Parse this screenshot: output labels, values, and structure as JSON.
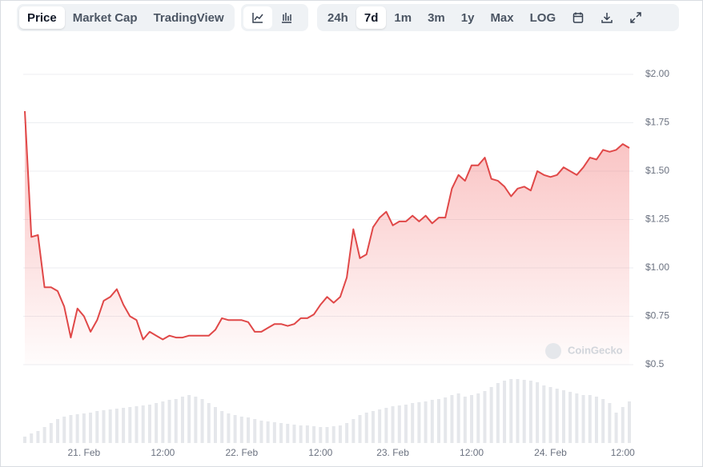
{
  "toolbar": {
    "views": [
      "Price",
      "Market Cap",
      "TradingView"
    ],
    "ranges": [
      "24h",
      "7d",
      "1m",
      "3m",
      "1y",
      "Max",
      "LOG"
    ]
  },
  "watermark": "CoinGecko",
  "chart_data": {
    "type": "area",
    "categories": [
      null,
      null,
      null,
      null,
      null,
      null,
      null,
      null,
      null,
      "21. Feb",
      null,
      null,
      null,
      null,
      null,
      null,
      null,
      null,
      null,
      null,
      null,
      "12:00",
      null,
      null,
      null,
      null,
      null,
      null,
      null,
      null,
      null,
      null,
      null,
      "22. Feb",
      null,
      null,
      null,
      null,
      null,
      null,
      null,
      null,
      null,
      null,
      null,
      "12:00",
      null,
      null,
      null,
      null,
      null,
      null,
      null,
      null,
      null,
      null,
      "23. Feb",
      null,
      null,
      null,
      null,
      null,
      null,
      null,
      null,
      null,
      null,
      null,
      "12:00",
      null,
      null,
      null,
      null,
      null,
      null,
      null,
      null,
      null,
      null,
      null,
      "24. Feb",
      null,
      null,
      null,
      null,
      null,
      null,
      null,
      null,
      null,
      null,
      "12:00",
      null
    ],
    "series": [
      {
        "name": "Price",
        "color": "#e04848",
        "values": [
          1.81,
          1.16,
          1.17,
          0.9,
          0.9,
          0.88,
          0.8,
          0.64,
          0.79,
          0.75,
          0.67,
          0.73,
          0.83,
          0.85,
          0.89,
          0.81,
          0.75,
          0.73,
          0.63,
          0.67,
          0.65,
          0.63,
          0.65,
          0.64,
          0.64,
          0.65,
          0.65,
          0.65,
          0.65,
          0.68,
          0.74,
          0.73,
          0.73,
          0.73,
          0.72,
          0.67,
          0.67,
          0.69,
          0.71,
          0.71,
          0.7,
          0.71,
          0.74,
          0.74,
          0.76,
          0.81,
          0.85,
          0.82,
          0.85,
          0.95,
          1.2,
          1.05,
          1.07,
          1.21,
          1.26,
          1.29,
          1.22,
          1.24,
          1.24,
          1.27,
          1.24,
          1.27,
          1.23,
          1.26,
          1.26,
          1.41,
          1.48,
          1.45,
          1.53,
          1.53,
          1.57,
          1.46,
          1.45,
          1.42,
          1.37,
          1.41,
          1.42,
          1.4,
          1.5,
          1.48,
          1.47,
          1.48,
          1.52,
          1.5,
          1.48,
          1.52,
          1.57,
          1.56,
          1.61,
          1.6,
          1.61,
          1.64,
          1.62
        ]
      }
    ],
    "volume": {
      "color": "#e5e7eb",
      "values": [
        8,
        12,
        15,
        20,
        25,
        30,
        33,
        35,
        36,
        37,
        38,
        40,
        41,
        42,
        43,
        44,
        45,
        46,
        47,
        48,
        50,
        52,
        54,
        55,
        58,
        60,
        58,
        55,
        50,
        45,
        40,
        37,
        35,
        33,
        32,
        30,
        28,
        27,
        26,
        25,
        24,
        23,
        22,
        22,
        21,
        20,
        20,
        21,
        22,
        25,
        30,
        35,
        38,
        40,
        42,
        44,
        46,
        47,
        48,
        50,
        51,
        52,
        54,
        55,
        57,
        60,
        62,
        58,
        60,
        62,
        65,
        70,
        75,
        78,
        80,
        80,
        79,
        78,
        76,
        72,
        70,
        68,
        66,
        64,
        62,
        60,
        60,
        58,
        55,
        50,
        38,
        45,
        52
      ]
    },
    "ylim": [
      0.5,
      2.0
    ],
    "yticks": [
      {
        "value": 0.5,
        "label": "$0.5"
      },
      {
        "value": 0.75,
        "label": "$0.75"
      },
      {
        "value": 1.0,
        "label": "$1.00"
      },
      {
        "value": 1.25,
        "label": "$1.25"
      },
      {
        "value": 1.5,
        "label": "$1.50"
      },
      {
        "value": 1.75,
        "label": "$1.75"
      },
      {
        "value": 2.0,
        "label": "$2.00"
      }
    ],
    "grid": true
  }
}
